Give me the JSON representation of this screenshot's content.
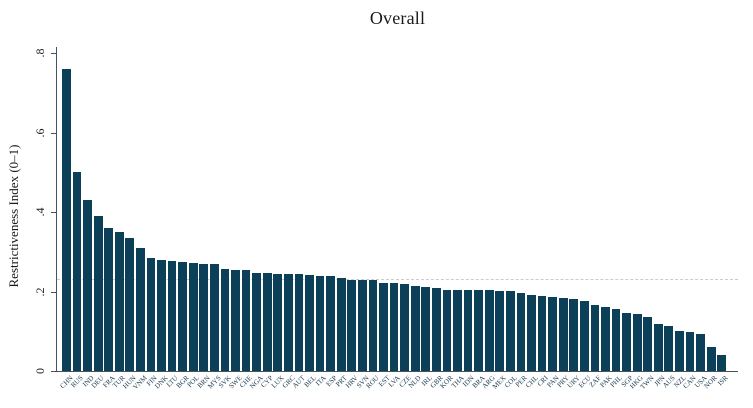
{
  "title": "Overall",
  "chart_data": {
    "type": "bar",
    "title": "Overall",
    "xlabel": "",
    "ylabel": "Restrictiveness Index (0–1)",
    "ylim": [
      0,
      0.8
    ],
    "yticks": [
      0,
      0.2,
      0.4,
      0.6,
      0.8
    ],
    "ytick_labels": [
      "0",
      ".2",
      ".4",
      ".6",
      ".8"
    ],
    "grid": false,
    "legend": "none",
    "reference_line_y": 0.232,
    "bar_color": "#0c4058",
    "reference_line_color": "#cccccc",
    "categories": [
      "CHN",
      "RUS",
      "IND",
      "DEU",
      "FRA",
      "TUR",
      "HUN",
      "VNM",
      "FIN",
      "DNK",
      "LTU",
      "BGR",
      "POL",
      "BRN",
      "MYS",
      "SVK",
      "SWE",
      "CHE",
      "NGA",
      "CYP",
      "LUX",
      "GRC",
      "AUT",
      "BEL",
      "ITA",
      "ESP",
      "PRT",
      "HRV",
      "SVN",
      "ROU",
      "EST",
      "LVA",
      "CZE",
      "NLD",
      "IRL",
      "GBR",
      "KOR",
      "THA",
      "IDN",
      "BRA",
      "ARG",
      "MEX",
      "COL",
      "PER",
      "CHL",
      "CRI",
      "PAN",
      "PRY",
      "URY",
      "ECU",
      "ZAF",
      "PAK",
      "PHL",
      "SGP",
      "HKG",
      "TWN",
      "JPN",
      "AUS",
      "NZL",
      "CAN",
      "USA",
      "NOR",
      "ISR"
    ],
    "values": [
      0.76,
      0.5,
      0.43,
      0.39,
      0.36,
      0.35,
      0.335,
      0.31,
      0.285,
      0.28,
      0.277,
      0.274,
      0.272,
      0.27,
      0.268,
      0.257,
      0.255,
      0.253,
      0.247,
      0.246,
      0.245,
      0.244,
      0.243,
      0.242,
      0.24,
      0.238,
      0.235,
      0.23,
      0.229,
      0.228,
      0.222,
      0.221,
      0.218,
      0.213,
      0.212,
      0.209,
      0.204,
      0.204,
      0.203,
      0.203,
      0.203,
      0.202,
      0.201,
      0.196,
      0.192,
      0.189,
      0.185,
      0.183,
      0.181,
      0.176,
      0.165,
      0.16,
      0.155,
      0.146,
      0.144,
      0.137,
      0.119,
      0.113,
      0.1,
      0.097,
      0.093,
      0.06,
      0.04
    ]
  }
}
